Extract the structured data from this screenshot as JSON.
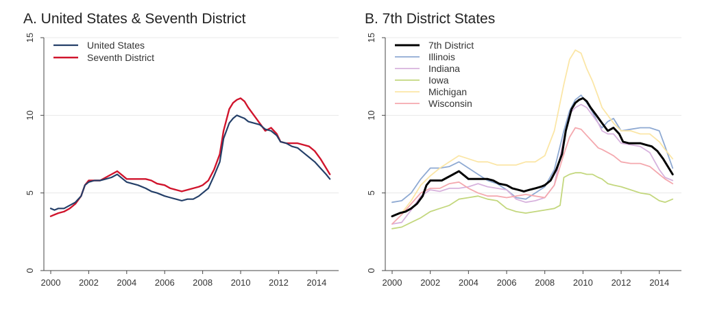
{
  "chart_data": [
    {
      "type": "line",
      "title": "A. United States & Seventh District",
      "xlabel": "",
      "ylabel": "",
      "xlim": [
        2000,
        2014.8
      ],
      "ylim": [
        0,
        15
      ],
      "xticks": [
        2000,
        2002,
        2004,
        2006,
        2008,
        2010,
        2012,
        2014
      ],
      "yticks": [
        0,
        5,
        10,
        15
      ],
      "grid": true,
      "legend": "top-left",
      "series": [
        {
          "name": "United States",
          "color": "#243f68",
          "width": 2.2,
          "x": [
            2000.0,
            2000.2,
            2000.4,
            2000.7,
            2001.0,
            2001.3,
            2001.6,
            2001.8,
            2002.0,
            2002.3,
            2002.6,
            2002.9,
            2003.2,
            2003.5,
            2003.8,
            2004.0,
            2004.3,
            2004.6,
            2005.0,
            2005.3,
            2005.6,
            2006.0,
            2006.3,
            2006.6,
            2006.9,
            2007.2,
            2007.5,
            2007.8,
            2008.0,
            2008.3,
            2008.6,
            2008.9,
            2009.1,
            2009.4,
            2009.6,
            2009.8,
            2010.0,
            2010.2,
            2010.4,
            2010.7,
            2011.0,
            2011.3,
            2011.6,
            2011.9,
            2012.1,
            2012.4,
            2012.7,
            2013.0,
            2013.3,
            2013.6,
            2013.9,
            2014.2,
            2014.5,
            2014.7
          ],
          "y": [
            4.0,
            3.9,
            4.0,
            4.0,
            4.2,
            4.4,
            4.8,
            5.5,
            5.7,
            5.8,
            5.8,
            5.9,
            6.0,
            6.2,
            5.9,
            5.7,
            5.6,
            5.5,
            5.3,
            5.1,
            5.0,
            4.8,
            4.7,
            4.6,
            4.5,
            4.6,
            4.6,
            4.8,
            5.0,
            5.3,
            6.1,
            7.0,
            8.5,
            9.5,
            9.8,
            10.0,
            9.9,
            9.8,
            9.6,
            9.5,
            9.4,
            9.1,
            9.0,
            8.7,
            8.3,
            8.2,
            8.0,
            7.9,
            7.6,
            7.3,
            7.0,
            6.6,
            6.2,
            5.9
          ]
        },
        {
          "name": "Seventh District",
          "color": "#d0142c",
          "width": 2.4,
          "x": [
            2000.0,
            2000.2,
            2000.4,
            2000.7,
            2001.0,
            2001.3,
            2001.6,
            2001.8,
            2002.0,
            2002.3,
            2002.6,
            2002.9,
            2003.2,
            2003.5,
            2003.8,
            2004.0,
            2004.3,
            2004.6,
            2005.0,
            2005.3,
            2005.6,
            2006.0,
            2006.3,
            2006.6,
            2006.9,
            2007.2,
            2007.5,
            2007.8,
            2008.0,
            2008.3,
            2008.6,
            2008.9,
            2009.1,
            2009.4,
            2009.6,
            2009.8,
            2010.0,
            2010.2,
            2010.4,
            2010.7,
            2011.0,
            2011.3,
            2011.6,
            2011.9,
            2012.1,
            2012.4,
            2012.7,
            2013.0,
            2013.3,
            2013.6,
            2013.9,
            2014.2,
            2014.5,
            2014.7
          ],
          "y": [
            3.5,
            3.6,
            3.7,
            3.8,
            4.0,
            4.3,
            4.8,
            5.5,
            5.8,
            5.8,
            5.8,
            6.0,
            6.2,
            6.4,
            6.1,
            5.9,
            5.9,
            5.9,
            5.9,
            5.8,
            5.6,
            5.5,
            5.3,
            5.2,
            5.1,
            5.2,
            5.3,
            5.4,
            5.5,
            5.8,
            6.5,
            7.5,
            9.0,
            10.4,
            10.8,
            11.0,
            11.1,
            10.9,
            10.5,
            10.0,
            9.5,
            9.0,
            9.2,
            8.8,
            8.3,
            8.2,
            8.2,
            8.2,
            8.1,
            8.0,
            7.7,
            7.2,
            6.6,
            6.2
          ]
        }
      ]
    },
    {
      "type": "line",
      "title": "B. 7th District States",
      "xlabel": "",
      "ylabel": "",
      "xlim": [
        2000,
        2014.8
      ],
      "ylim": [
        0,
        15
      ],
      "xticks": [
        2000,
        2002,
        2004,
        2006,
        2008,
        2010,
        2012,
        2014
      ],
      "yticks": [
        0,
        5,
        10,
        15
      ],
      "grid": true,
      "legend": "top-left",
      "series": [
        {
          "name": "7th District",
          "color": "#000000",
          "width": 3,
          "x": [
            2000.0,
            2000.2,
            2000.4,
            2000.7,
            2001.0,
            2001.3,
            2001.6,
            2001.8,
            2002.0,
            2002.3,
            2002.6,
            2002.9,
            2003.2,
            2003.5,
            2003.8,
            2004.0,
            2004.3,
            2004.6,
            2005.0,
            2005.3,
            2005.6,
            2006.0,
            2006.3,
            2006.6,
            2006.9,
            2007.2,
            2007.5,
            2007.8,
            2008.0,
            2008.3,
            2008.6,
            2008.9,
            2009.1,
            2009.4,
            2009.6,
            2009.8,
            2010.0,
            2010.2,
            2010.4,
            2010.7,
            2011.0,
            2011.3,
            2011.6,
            2011.9,
            2012.1,
            2012.4,
            2012.7,
            2013.0,
            2013.3,
            2013.6,
            2013.9,
            2014.2,
            2014.5,
            2014.7
          ],
          "y": [
            3.5,
            3.6,
            3.7,
            3.8,
            4.0,
            4.3,
            4.8,
            5.5,
            5.8,
            5.8,
            5.8,
            6.0,
            6.2,
            6.4,
            6.1,
            5.9,
            5.9,
            5.9,
            5.9,
            5.8,
            5.6,
            5.5,
            5.3,
            5.2,
            5.1,
            5.2,
            5.3,
            5.4,
            5.5,
            5.8,
            6.5,
            7.5,
            9.0,
            10.4,
            10.8,
            11.0,
            11.1,
            10.9,
            10.5,
            10.0,
            9.5,
            9.0,
            9.2,
            8.8,
            8.3,
            8.2,
            8.2,
            8.2,
            8.1,
            8.0,
            7.7,
            7.2,
            6.6,
            6.2
          ]
        },
        {
          "name": "Illinois",
          "color": "#8ea9d2",
          "width": 1.8,
          "x": [
            2000.0,
            2000.5,
            2001.0,
            2001.5,
            2002.0,
            2002.5,
            2003.0,
            2003.5,
            2004.0,
            2004.5,
            2005.0,
            2005.5,
            2006.0,
            2006.5,
            2007.0,
            2007.5,
            2008.0,
            2008.5,
            2009.0,
            2009.3,
            2009.6,
            2009.9,
            2010.2,
            2010.5,
            2010.8,
            2011.0,
            2011.3,
            2011.6,
            2012.0,
            2012.5,
            2013.0,
            2013.5,
            2014.0,
            2014.3,
            2014.7
          ],
          "y": [
            4.4,
            4.5,
            5.0,
            5.9,
            6.6,
            6.6,
            6.7,
            7.0,
            6.6,
            6.2,
            5.8,
            5.6,
            5.2,
            4.7,
            4.6,
            5.0,
            5.4,
            6.5,
            9.0,
            10.3,
            11.0,
            11.3,
            10.8,
            10.2,
            9.5,
            9.2,
            9.6,
            9.8,
            9.0,
            9.1,
            9.2,
            9.2,
            9.0,
            8.0,
            6.6
          ]
        },
        {
          "name": "Indiana",
          "color": "#d7b2dd",
          "width": 1.8,
          "x": [
            2000.0,
            2000.5,
            2001.0,
            2001.5,
            2002.0,
            2002.5,
            2003.0,
            2003.5,
            2004.0,
            2004.5,
            2005.0,
            2005.5,
            2006.0,
            2006.5,
            2007.0,
            2007.5,
            2008.0,
            2008.5,
            2009.0,
            2009.3,
            2009.6,
            2009.9,
            2010.2,
            2010.5,
            2010.8,
            2011.0,
            2011.3,
            2011.6,
            2012.0,
            2012.5,
            2013.0,
            2013.5,
            2014.0,
            2014.3,
            2014.7
          ],
          "y": [
            3.0,
            3.1,
            3.9,
            4.8,
            5.2,
            5.1,
            5.3,
            5.3,
            5.4,
            5.6,
            5.4,
            5.3,
            5.2,
            4.6,
            4.4,
            4.5,
            4.7,
            5.5,
            8.5,
            10.1,
            10.5,
            10.7,
            10.5,
            10.0,
            9.5,
            9.0,
            8.8,
            8.8,
            8.2,
            8.1,
            8.0,
            7.6,
            6.5,
            6.0,
            5.8
          ]
        },
        {
          "name": "Iowa",
          "color": "#c3d77d",
          "width": 1.8,
          "x": [
            2000.0,
            2000.5,
            2001.0,
            2001.5,
            2002.0,
            2002.5,
            2003.0,
            2003.5,
            2004.0,
            2004.5,
            2005.0,
            2005.5,
            2006.0,
            2006.5,
            2007.0,
            2007.5,
            2008.0,
            2008.5,
            2008.8,
            2009.0,
            2009.3,
            2009.6,
            2009.9,
            2010.2,
            2010.5,
            2010.8,
            2011.0,
            2011.3,
            2011.6,
            2012.0,
            2012.5,
            2013.0,
            2013.5,
            2014.0,
            2014.3,
            2014.7
          ],
          "y": [
            2.7,
            2.8,
            3.1,
            3.4,
            3.8,
            4.0,
            4.2,
            4.6,
            4.7,
            4.8,
            4.6,
            4.5,
            4.0,
            3.8,
            3.7,
            3.8,
            3.9,
            4.0,
            4.2,
            6.0,
            6.2,
            6.3,
            6.3,
            6.2,
            6.2,
            6.0,
            5.9,
            5.6,
            5.5,
            5.4,
            5.2,
            5.0,
            4.9,
            4.5,
            4.4,
            4.6
          ]
        },
        {
          "name": "Michigan",
          "color": "#fbe6a6",
          "width": 1.8,
          "x": [
            2000.0,
            2000.5,
            2001.0,
            2001.5,
            2002.0,
            2002.5,
            2003.0,
            2003.5,
            2004.0,
            2004.5,
            2005.0,
            2005.5,
            2006.0,
            2006.5,
            2007.0,
            2007.5,
            2008.0,
            2008.5,
            2009.0,
            2009.3,
            2009.6,
            2009.9,
            2010.2,
            2010.5,
            2010.8,
            2011.0,
            2011.3,
            2011.6,
            2012.0,
            2012.5,
            2013.0,
            2013.5,
            2014.0,
            2014.3,
            2014.7
          ],
          "y": [
            3.5,
            3.7,
            4.5,
            5.5,
            6.1,
            6.6,
            7.0,
            7.4,
            7.2,
            7.0,
            7.0,
            6.8,
            6.8,
            6.8,
            7.0,
            7.0,
            7.4,
            9.0,
            12.0,
            13.6,
            14.2,
            14.0,
            13.0,
            12.2,
            11.2,
            10.5,
            10.0,
            9.5,
            9.0,
            9.0,
            8.8,
            8.8,
            8.3,
            7.8,
            7.2
          ]
        },
        {
          "name": "Wisconsin",
          "color": "#f4a8ae",
          "width": 1.8,
          "x": [
            2000.0,
            2000.5,
            2001.0,
            2001.5,
            2002.0,
            2002.5,
            2003.0,
            2003.5,
            2004.0,
            2004.5,
            2005.0,
            2005.5,
            2006.0,
            2006.5,
            2007.0,
            2007.5,
            2008.0,
            2008.5,
            2009.0,
            2009.3,
            2009.6,
            2009.9,
            2010.2,
            2010.5,
            2010.8,
            2011.0,
            2011.3,
            2011.6,
            2012.0,
            2012.5,
            2013.0,
            2013.5,
            2014.0,
            2014.3,
            2014.7
          ],
          "y": [
            3.0,
            3.6,
            4.3,
            5.0,
            5.3,
            5.3,
            5.6,
            5.7,
            5.3,
            5.0,
            4.8,
            4.8,
            4.7,
            4.8,
            4.9,
            4.8,
            4.7,
            5.5,
            7.5,
            8.6,
            9.2,
            9.1,
            8.7,
            8.3,
            7.9,
            7.8,
            7.6,
            7.4,
            7.0,
            6.9,
            6.9,
            6.7,
            6.2,
            5.9,
            5.6
          ]
        }
      ]
    }
  ]
}
